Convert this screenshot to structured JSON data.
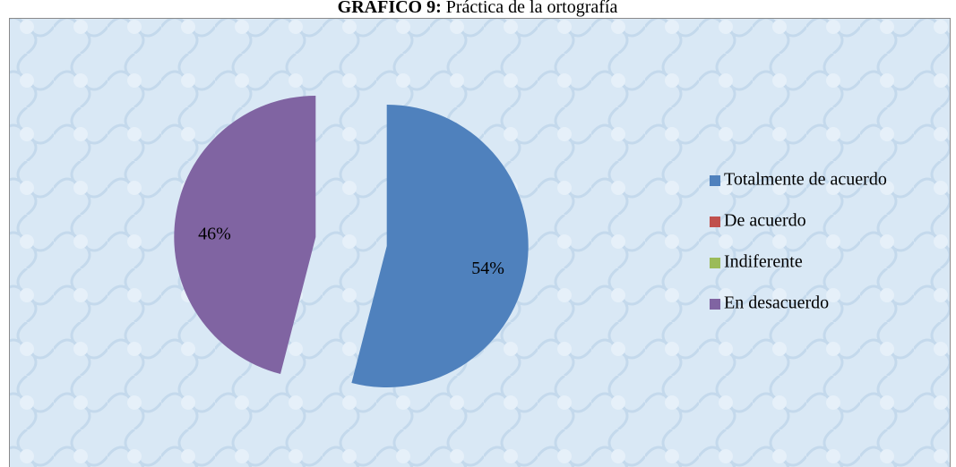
{
  "chart_data": {
    "type": "pie",
    "title_label": "GRÁFICO 9:",
    "title": "Práctica de la ortografía",
    "categories": [
      "Totalmente de acuerdo",
      "De acuerdo",
      "Indiferente",
      "En desacuerdo"
    ],
    "values": [
      54,
      0,
      0,
      46
    ],
    "value_labels": [
      "54%",
      null,
      null,
      "46%"
    ],
    "colors": [
      "#4f81bd",
      "#c0504d",
      "#9bbb59",
      "#8064a2"
    ],
    "legend": "right"
  }
}
